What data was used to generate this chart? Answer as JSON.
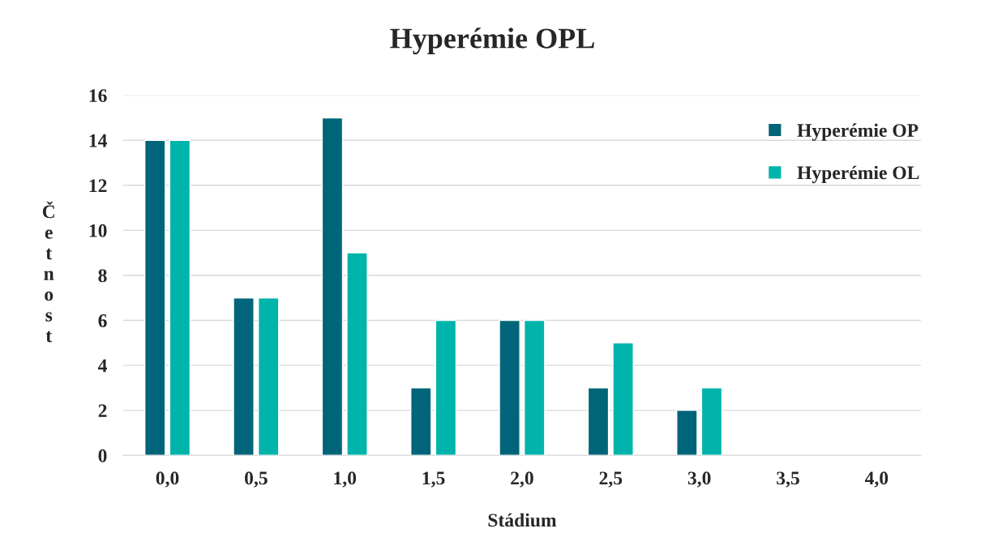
{
  "chart_data": {
    "type": "bar",
    "title": "Hyperémie OPL",
    "xlabel": "Stádium",
    "ylabel": "Četnost",
    "categories": [
      "0,0",
      "0,5",
      "1,0",
      "1,5",
      "2,0",
      "2,5",
      "3,0",
      "3,5",
      "4,0"
    ],
    "series": [
      {
        "name": "Hyperémie OP",
        "color": "#006579",
        "values": [
          14,
          7,
          15,
          3,
          6,
          3,
          2,
          null,
          null
        ]
      },
      {
        "name": "Hyperémie OL",
        "color": "#00b4ab",
        "values": [
          14,
          7,
          9,
          6,
          6,
          5,
          3,
          null,
          null
        ]
      }
    ],
    "ylim": [
      0,
      16
    ],
    "yticks": [
      0,
      2,
      4,
      6,
      8,
      10,
      12,
      14,
      16
    ],
    "grid": "y",
    "legend": "top right"
  }
}
